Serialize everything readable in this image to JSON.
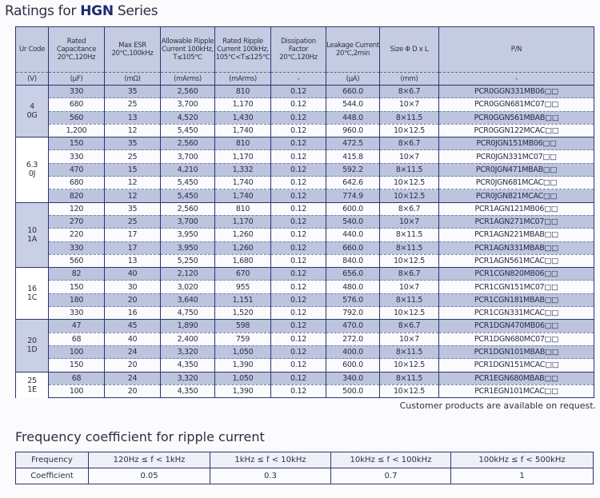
{
  "title": {
    "prefix": "Ratings for ",
    "series": "HGN",
    "suffix": " Series"
  },
  "headers": [
    "Ur Code",
    "Rated Capacitance 20℃,120Hz",
    "Max ESR 20℃,100kHz",
    "Allowable Ripple Current 100kHz, T≤105℃",
    "Rated Ripple Current 100kHz, 105℃<T≤125℃",
    "Dissipation Factor 20℃,120Hz",
    "Leakage Current 20℃,2min",
    "Size Φ D x L",
    "P/N"
  ],
  "units": [
    "(V)",
    "(μF)",
    "(mΩ)",
    "(mArms)",
    "(mArms)",
    "-",
    "(μA)",
    "(mm)",
    "-"
  ],
  "groups": [
    {
      "voltage": "4",
      "code": "0G",
      "shaded": true,
      "rows": [
        [
          "330",
          "35",
          "2,560",
          "810",
          "0.12",
          "660.0",
          "8×6.7",
          "PCR0GGN331MB06□□",
          true
        ],
        [
          "680",
          "25",
          "3,700",
          "1,170",
          "0.12",
          "544.0",
          "10×7",
          "PCR0GGN681MC07□□",
          false
        ],
        [
          "560",
          "13",
          "4,520",
          "1,430",
          "0.12",
          "448.0",
          "8×11.5",
          "PCR0GGN561MBAB□□",
          true
        ],
        [
          "1,200",
          "12",
          "5,450",
          "1,740",
          "0.12",
          "960.0",
          "10×12.5",
          "PCR0GGN122MCAC□□",
          false
        ]
      ]
    },
    {
      "voltage": "6.3",
      "code": "0J",
      "shaded": false,
      "rows": [
        [
          "150",
          "35",
          "2,560",
          "810",
          "0.12",
          "472.5",
          "8×6.7",
          "PCR0JGN151MB06□□",
          true
        ],
        [
          "330",
          "25",
          "3,700",
          "1,170",
          "0.12",
          "415.8",
          "10×7",
          "PCR0JGN331MC07□□",
          false
        ],
        [
          "470",
          "15",
          "4,210",
          "1,332",
          "0.12",
          "592.2",
          "8×11.5",
          "PCR0JGN471MBAB□□",
          true
        ],
        [
          "680",
          "12",
          "5,450",
          "1,740",
          "0.12",
          "642.6",
          "10×12.5",
          "PCR0JGN681MCAC□□",
          false
        ],
        [
          "820",
          "12",
          "5,450",
          "1,740",
          "0.12",
          "774.9",
          "10×12.5",
          "PCR0JGN821MCAC□□",
          true
        ]
      ]
    },
    {
      "voltage": "10",
      "code": "1A",
      "shaded": true,
      "rows": [
        [
          "120",
          "35",
          "2,560",
          "810",
          "0.12",
          "600.0",
          "8×6.7",
          "PCR1AGN121MB06□□",
          false
        ],
        [
          "270",
          "25",
          "3,700",
          "1,170",
          "0.12",
          "540.0",
          "10×7",
          "PCR1AGN271MC07□□",
          true
        ],
        [
          "220",
          "17",
          "3,950",
          "1,260",
          "0.12",
          "440.0",
          "8×11.5",
          "PCR1AGN221MBAB□□",
          false
        ],
        [
          "330",
          "17",
          "3,950",
          "1,260",
          "0.12",
          "660.0",
          "8×11.5",
          "PCR1AGN331MBAB□□",
          true
        ],
        [
          "560",
          "13",
          "5,250",
          "1,680",
          "0.12",
          "840.0",
          "10×12.5",
          "PCR1AGN561MCAC□□",
          false
        ]
      ]
    },
    {
      "voltage": "16",
      "code": "1C",
      "shaded": false,
      "rows": [
        [
          "82",
          "40",
          "2,120",
          "670",
          "0.12",
          "656.0",
          "8×6.7",
          "PCR1CGN820MB06□□",
          true
        ],
        [
          "150",
          "30",
          "3,020",
          "955",
          "0.12",
          "480.0",
          "10×7",
          "PCR1CGN151MC07□□",
          false
        ],
        [
          "180",
          "20",
          "3,640",
          "1,151",
          "0.12",
          "576.0",
          "8×11.5",
          "PCR1CGN181MBAB□□",
          true
        ],
        [
          "330",
          "16",
          "4,750",
          "1,520",
          "0.12",
          "792.0",
          "10×12.5",
          "PCR1CGN331MCAC□□",
          false
        ]
      ]
    },
    {
      "voltage": "20",
      "code": "1D",
      "shaded": true,
      "rows": [
        [
          "47",
          "45",
          "1,890",
          "598",
          "0.12",
          "470.0",
          "8×6.7",
          "PCR1DGN470MB06□□",
          true
        ],
        [
          "68",
          "40",
          "2,400",
          "759",
          "0.12",
          "272.0",
          "10×7",
          "PCR1DGN680MC07□□",
          false
        ],
        [
          "100",
          "24",
          "3,320",
          "1,050",
          "0.12",
          "400.0",
          "8×11.5",
          "PCR1DGN101MBAB□□",
          true
        ],
        [
          "150",
          "20",
          "4,350",
          "1,390",
          "0.12",
          "600.0",
          "10×12.5",
          "PCR1DGN151MCAC□□",
          false
        ]
      ]
    },
    {
      "voltage": "25",
      "code": "1E",
      "shaded": false,
      "rows": [
        [
          "68",
          "24",
          "3,320",
          "1,050",
          "0.12",
          "340.0",
          "8×11.5",
          "PCR1EGN680MBAB□□",
          true
        ],
        [
          "100",
          "20",
          "4,350",
          "1,390",
          "0.12",
          "500.0",
          "10×12.5",
          "PCR1EGN101MCAC□□",
          false
        ]
      ]
    }
  ],
  "note": "Customer products are available on request.",
  "frequency": {
    "title": "Frequency coefficient for ripple current",
    "row_labels": [
      "Frequency",
      "Coefficient"
    ],
    "ranges": [
      "120Hz ≤ f < 1kHz",
      "1kHz ≤ f < 10kHz",
      "10kHz ≤ f < 100kHz",
      "100kHz ≤ f < 500kHz"
    ],
    "coefficients": [
      "0.05",
      "0.3",
      "0.7",
      "1"
    ]
  },
  "colors": {
    "border": "#2b3570",
    "shaded": "#bcc4de",
    "header": "#c5cce2"
  }
}
